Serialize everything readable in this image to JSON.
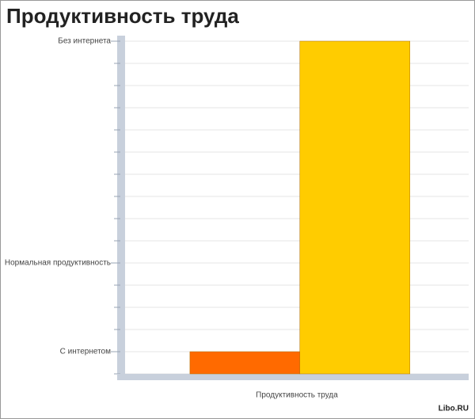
{
  "chart_data": {
    "type": "bar",
    "title": "Продуктивность труда",
    "x_label": "Продуктивность труда",
    "watermark": "Libo.RU",
    "categories": [
      null,
      null
    ],
    "values": [
      1,
      15
    ],
    "colors": [
      "#ff6a00",
      "#ffcc00"
    ],
    "ylim": [
      0,
      15.25
    ],
    "yticks": [
      {
        "value": 1,
        "label": "С интернетом"
      },
      {
        "value": 5,
        "label": "Нормальная продуктивность"
      },
      {
        "value": 15,
        "label": "Без интернета"
      }
    ],
    "grid_yticks": [
      0,
      1,
      2,
      3,
      4,
      5,
      6,
      7,
      8,
      9,
      10,
      11,
      12,
      13,
      14,
      15
    ],
    "grid": true
  }
}
